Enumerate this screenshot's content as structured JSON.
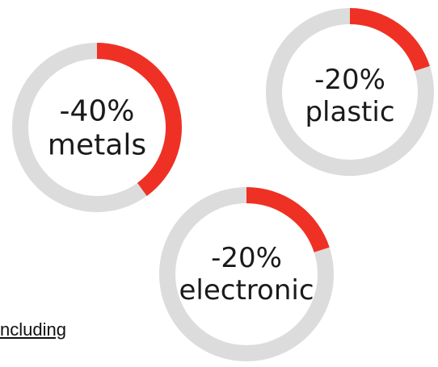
{
  "chart_data": [
    {
      "type": "pie",
      "values": [
        40,
        60
      ],
      "labels": [
        "-40%",
        "metals"
      ]
    },
    {
      "type": "pie",
      "values": [
        20,
        80
      ],
      "labels": [
        "-20%",
        "plastic"
      ]
    },
    {
      "type": "pie",
      "values": [
        20,
        80
      ],
      "labels": [
        "-20%",
        "electronic"
      ]
    }
  ],
  "colors": {
    "highlight": "#ee3124",
    "track": "#dcdcdc"
  },
  "footnote": "ncluding"
}
